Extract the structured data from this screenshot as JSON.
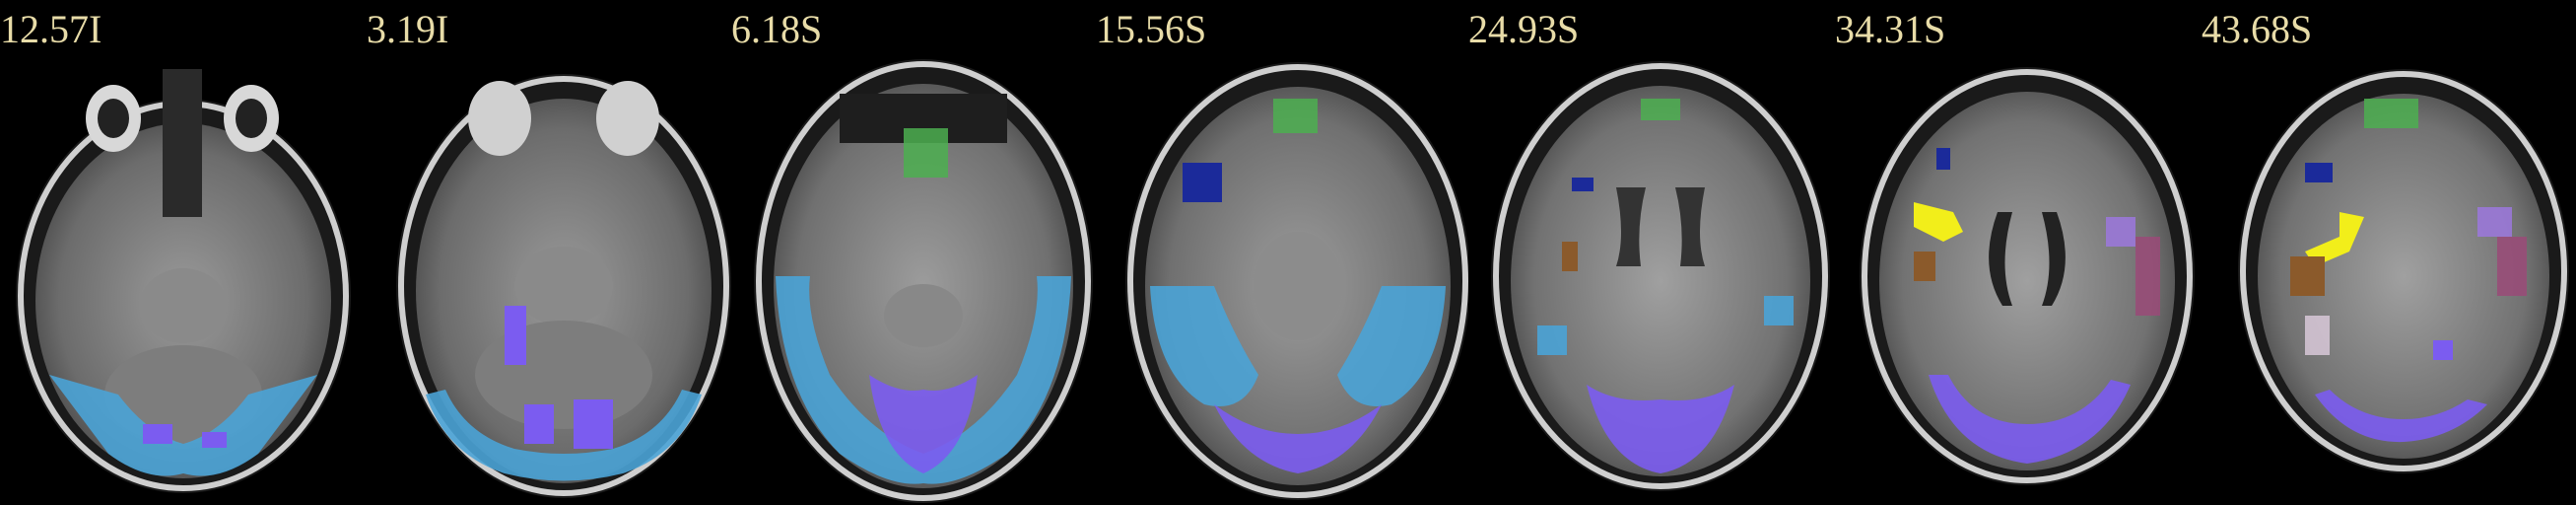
{
  "slices": [
    {
      "label": "12.57I"
    },
    {
      "label": "3.19I"
    },
    {
      "label": "6.18S"
    },
    {
      "label": "15.56S"
    },
    {
      "label": "24.93S"
    },
    {
      "label": "34.31S"
    },
    {
      "label": "43.68S"
    }
  ],
  "colors": {
    "background": "#000000",
    "label_text": "#e8dca8",
    "network_light_blue": "#4aa3d6",
    "network_purple": "#7b5cf0",
    "network_green": "#4caf50",
    "network_dark_blue": "#1b2a9a",
    "network_yellow": "#f2ee1a",
    "network_brown": "#8b5a2b",
    "network_mauve": "#9a4a78",
    "network_lavender": "#9a78d8",
    "network_pink_white": "#d8c8d8"
  }
}
